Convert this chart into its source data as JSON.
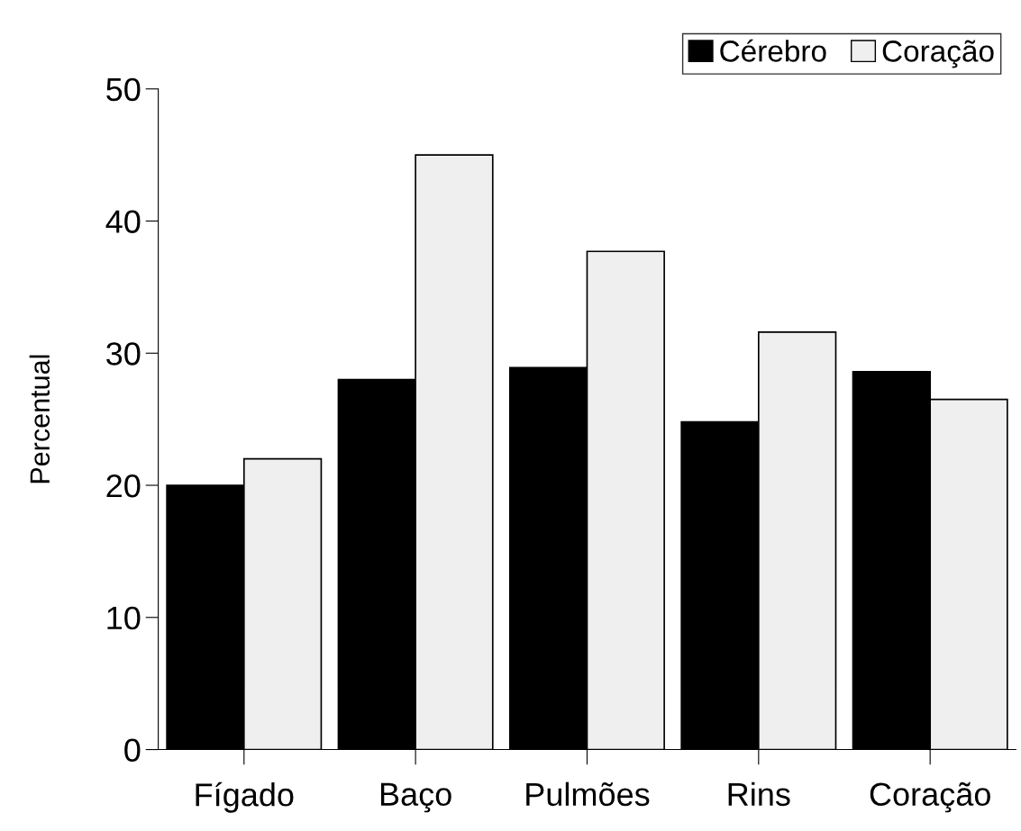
{
  "chart_data": {
    "type": "bar",
    "ylabel": "Percentual",
    "categories": [
      "Fígado",
      "Baço",
      "Pulmões",
      "Rins",
      "Coração"
    ],
    "series": [
      {
        "name": "Cérebro",
        "color": "#000000",
        "values": [
          20,
          28,
          28.9,
          24.8,
          28.6
        ]
      },
      {
        "name": "Coração",
        "color": "#efefef",
        "values": [
          22,
          45,
          37.7,
          31.6,
          26.5
        ]
      }
    ],
    "ylim": [
      0,
      50
    ],
    "yticks": [
      0,
      10,
      20,
      30,
      40,
      50
    ],
    "grid": false,
    "legend": "top right"
  }
}
